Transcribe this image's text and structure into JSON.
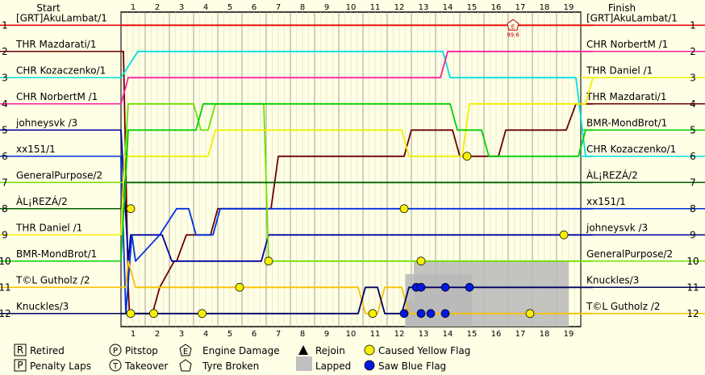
{
  "chart_data": {
    "type": "line",
    "headers": {
      "start": "Start",
      "finish": "Finish"
    },
    "laps": [
      1,
      2,
      3,
      4,
      5,
      6,
      7,
      8,
      9,
      10,
      11,
      12,
      13,
      14,
      15,
      16,
      17,
      18,
      19
    ],
    "positions": [
      1,
      2,
      3,
      4,
      5,
      6,
      7,
      8,
      9,
      10,
      11,
      12
    ],
    "start_order": [
      "[GRT]AkuLambat/1",
      "THR Mazdarati/1",
      "CHR Kozaczenko/1",
      "CHR NorbertM /1",
      "johneysvk /3",
      "xx151/1",
      "GeneralPurpose/2",
      "ÀL¡REZÁ/2",
      "THR Daniel /1",
      "BMR-MondBrot/1",
      "T©L Gutholz /2",
      "Knuckles/3"
    ],
    "finish_order": [
      "[GRT]AkuLambat/1",
      "CHR NorbertM /1",
      "THR Daniel /1",
      "THR Mazdarati/1",
      "BMR-MondBrot/1",
      "CHR Kozaczenko/1",
      "ÀL¡REZÁ/2",
      "xx151/1",
      "johneysvk /3",
      "GeneralPurpose/2",
      "Knuckles/3",
      "T©L Gutholz /2"
    ],
    "series": [
      {
        "name": "[GRT]AkuLambat/1",
        "color": "#e80000",
        "pos": [
          [
            0,
            1
          ],
          [
            19.5,
            1
          ]
        ]
      },
      {
        "name": "THR Mazdarati/1",
        "color": "#6b0000",
        "pos": [
          [
            0,
            2
          ],
          [
            0.1,
            2
          ],
          [
            0.3,
            11
          ],
          [
            0.35,
            12
          ],
          [
            1.3,
            12
          ],
          [
            1.6,
            11
          ],
          [
            2.2,
            10
          ],
          [
            2.3,
            10
          ],
          [
            2.7,
            9
          ],
          [
            3.7,
            9
          ],
          [
            4,
            8
          ],
          [
            6.2,
            8
          ],
          [
            6.5,
            6
          ],
          [
            11.7,
            6
          ],
          [
            12,
            5
          ],
          [
            13.7,
            5
          ],
          [
            14,
            6
          ],
          [
            15.6,
            6
          ],
          [
            15.9,
            5
          ],
          [
            18.4,
            5
          ],
          [
            18.8,
            4
          ],
          [
            19.5,
            4
          ]
        ]
      },
      {
        "name": "CHR Kozaczenko/1",
        "color": "#00e0e0",
        "pos": [
          [
            0,
            3
          ],
          [
            0.7,
            2
          ],
          [
            13.3,
            2
          ],
          [
            13.6,
            3
          ],
          [
            18.8,
            3
          ],
          [
            19.2,
            6
          ],
          [
            19.5,
            6
          ]
        ]
      },
      {
        "name": "CHR NorbertM /1",
        "color": "#ff20a0",
        "pos": [
          [
            0,
            4
          ],
          [
            0.3,
            3
          ],
          [
            13.2,
            3
          ],
          [
            13.5,
            2
          ],
          [
            19.5,
            2
          ]
        ]
      },
      {
        "name": "johneysvk /3",
        "color": "#0000a0",
        "pos": [
          [
            0,
            5
          ],
          [
            0.3,
            10
          ],
          [
            0.4,
            9
          ],
          [
            1.7,
            9
          ],
          [
            2.1,
            10
          ],
          [
            5.8,
            10
          ],
          [
            6.1,
            9
          ],
          [
            19.5,
            9
          ]
        ]
      },
      {
        "name": "xx151/1",
        "color": "#0030e0",
        "pos": [
          [
            0,
            6
          ],
          [
            0.2,
            12
          ],
          [
            0.45,
            9
          ],
          [
            0.6,
            10
          ],
          [
            1.6,
            9
          ],
          [
            2.3,
            8
          ],
          [
            2.8,
            8
          ],
          [
            3.1,
            9
          ],
          [
            3.8,
            9
          ],
          [
            4.1,
            8
          ],
          [
            5.8,
            8
          ],
          [
            6.1,
            8
          ],
          [
            19.5,
            8
          ]
        ]
      },
      {
        "name": "GeneralPurpose/2",
        "color": "#70e000",
        "pos": [
          [
            0,
            7
          ],
          [
            0.1,
            7
          ],
          [
            0.3,
            4
          ],
          [
            3,
            4
          ],
          [
            3.3,
            5
          ],
          [
            3.6,
            5
          ],
          [
            3.9,
            4
          ],
          [
            4.3,
            4
          ],
          [
            5.9,
            4
          ],
          [
            6.1,
            10
          ],
          [
            19.5,
            10
          ]
        ]
      },
      {
        "name": "ÀL¡REZÁ/2",
        "color": "#006000",
        "pos": [
          [
            0,
            8
          ],
          [
            0.2,
            7
          ],
          [
            19.5,
            7
          ]
        ]
      },
      {
        "name": "THR Daniel /1",
        "color": "#f0f000",
        "pos": [
          [
            0,
            9
          ],
          [
            0.15,
            6
          ],
          [
            3.6,
            6
          ],
          [
            3.9,
            5
          ],
          [
            11.6,
            5
          ],
          [
            11.9,
            6
          ],
          [
            14.1,
            6
          ],
          [
            14.4,
            4
          ],
          [
            19.2,
            4
          ],
          [
            19.5,
            3
          ]
        ]
      },
      {
        "name": "BMR-MondBrot/1",
        "color": "#00d000",
        "pos": [
          [
            0,
            10
          ],
          [
            0.3,
            5
          ],
          [
            3.1,
            5
          ],
          [
            3.4,
            4
          ],
          [
            13.6,
            4
          ],
          [
            13.9,
            5
          ],
          [
            14.9,
            5
          ],
          [
            15.2,
            6
          ],
          [
            18.9,
            6
          ],
          [
            19.2,
            5
          ],
          [
            19.5,
            5
          ]
        ]
      },
      {
        "name": "T©L Gutholz /2",
        "color": "#f8c000",
        "pos": [
          [
            0,
            11
          ],
          [
            0.2,
            11
          ],
          [
            0.3,
            10
          ],
          [
            0.6,
            11
          ],
          [
            9.8,
            11
          ],
          [
            10.1,
            12
          ],
          [
            10.6,
            12
          ],
          [
            10.9,
            11
          ],
          [
            11.6,
            11
          ],
          [
            11.9,
            12
          ],
          [
            16.6,
            12
          ],
          [
            16.9,
            12
          ],
          [
            19.5,
            12
          ]
        ]
      },
      {
        "name": "Knuckles/3",
        "color": "#000060",
        "pos": [
          [
            0,
            12
          ],
          [
            9.8,
            12
          ],
          [
            10.1,
            11
          ],
          [
            10.6,
            11
          ],
          [
            10.9,
            12
          ],
          [
            11.6,
            12
          ],
          [
            11.9,
            11
          ],
          [
            16.5,
            11
          ],
          [
            16.8,
            11
          ],
          [
            18.6,
            11
          ],
          [
            19.5,
            11
          ]
        ]
      }
    ],
    "lapped": [
      [
        11.75,
        11,
        14.5
      ],
      [
        11.75,
        12,
        12.1
      ],
      [
        12.1,
        10.5,
        18.5
      ]
    ],
    "yellow_flags": [
      [
        0.4,
        8
      ],
      [
        0.4,
        12
      ],
      [
        1.35,
        12
      ],
      [
        3.35,
        12
      ],
      [
        4.9,
        11
      ],
      [
        6.1,
        10
      ],
      [
        10.4,
        12
      ],
      [
        11.7,
        8
      ],
      [
        12.4,
        10
      ],
      [
        14.3,
        6
      ],
      [
        16.9,
        12
      ],
      [
        18.3,
        9
      ]
    ],
    "blue_flags": [
      [
        11.7,
        12
      ],
      [
        12.2,
        11
      ],
      [
        12.4,
        11
      ],
      [
        12.4,
        12
      ],
      [
        12.8,
        12
      ],
      [
        13.4,
        11
      ],
      [
        13.4,
        12
      ],
      [
        14.4,
        11
      ]
    ],
    "engine_damage": {
      "lap": 16.2,
      "pos": 1,
      "label": "99.6"
    },
    "legend": {
      "retired": "Retired",
      "penalty": "Penalty Laps",
      "pitstop": "Pitstop",
      "takeover": "Takeover",
      "engine": "Engine Damage",
      "tyre": "Tyre Broken",
      "rejoin": "Rejoin",
      "lapped": "Lapped",
      "yellow": "Caused Yellow Flag",
      "blue": "Saw Blue Flag",
      "retired_glyph": "R",
      "penalty_glyph": "P",
      "pitstop_glyph": "P",
      "takeover_glyph": "T",
      "engine_glyph": "E"
    }
  }
}
